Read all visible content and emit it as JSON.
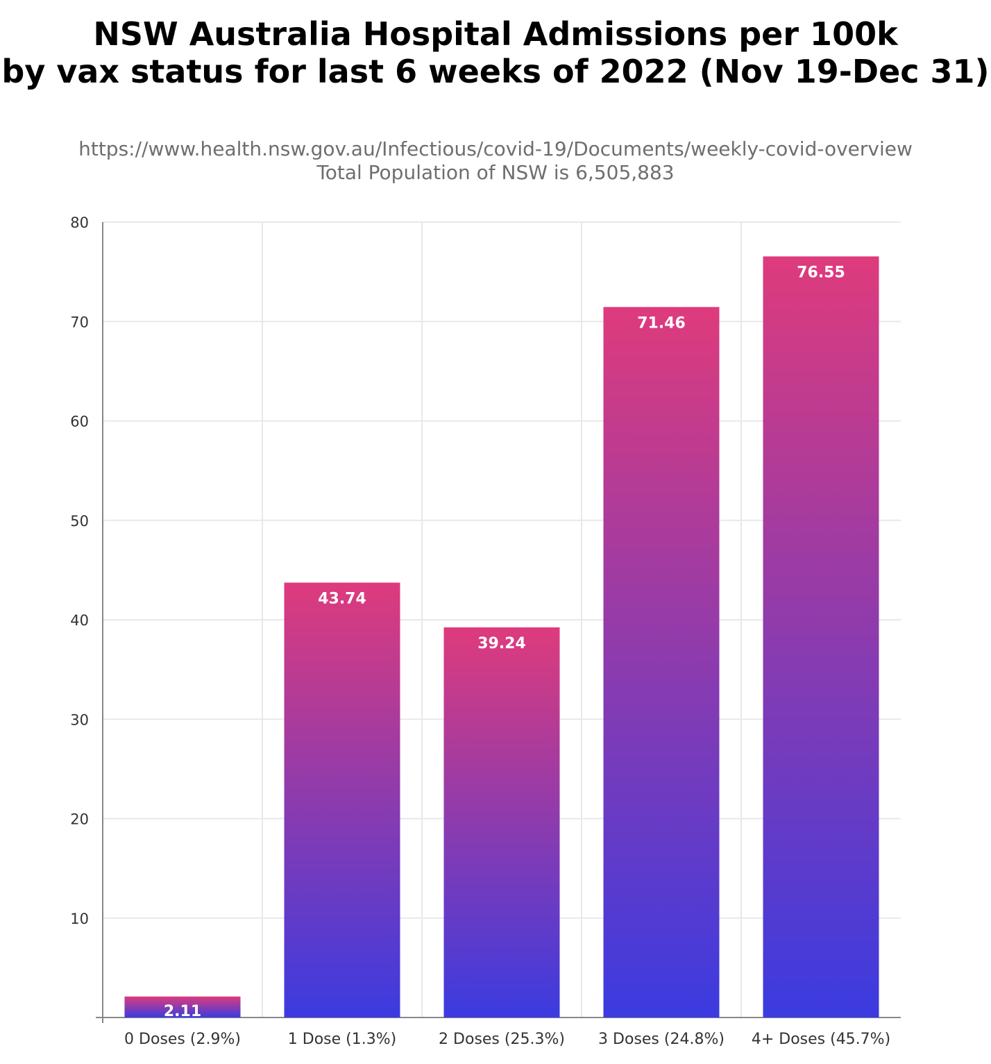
{
  "chart_data": {
    "type": "bar",
    "title": [
      "NSW Australia Hospital Admissions per 100k",
      "by vax status for last 6 weeks of 2022 (Nov 19-Dec 31)"
    ],
    "subtitle": [
      "https://www.health.nsw.gov.au/Infectious/covid-19/Documents/weekly-covid-overview",
      "Total Population of NSW is 6,505,883"
    ],
    "categories": [
      "0 Doses (2.9%)",
      "1 Dose (1.3%)",
      "2 Doses (25.3%)",
      "3 Doses (24.8%)",
      "4+ Doses (45.7%)"
    ],
    "values": [
      2.11,
      43.74,
      39.24,
      71.46,
      76.55
    ],
    "data_labels": [
      "2.11",
      "43.74",
      "39.24",
      "71.46",
      "76.55"
    ],
    "xlabel": "",
    "ylabel": "",
    "ylim": [
      0,
      80
    ],
    "yticks": [
      "10",
      "20",
      "30",
      "40",
      "50",
      "60",
      "70",
      "80"
    ],
    "grid": true,
    "colors": {
      "bar_top": "#de3b7c",
      "bar_bottom": "#3b3be0",
      "grid": "#e8e8e8",
      "axis": "#888888"
    }
  }
}
